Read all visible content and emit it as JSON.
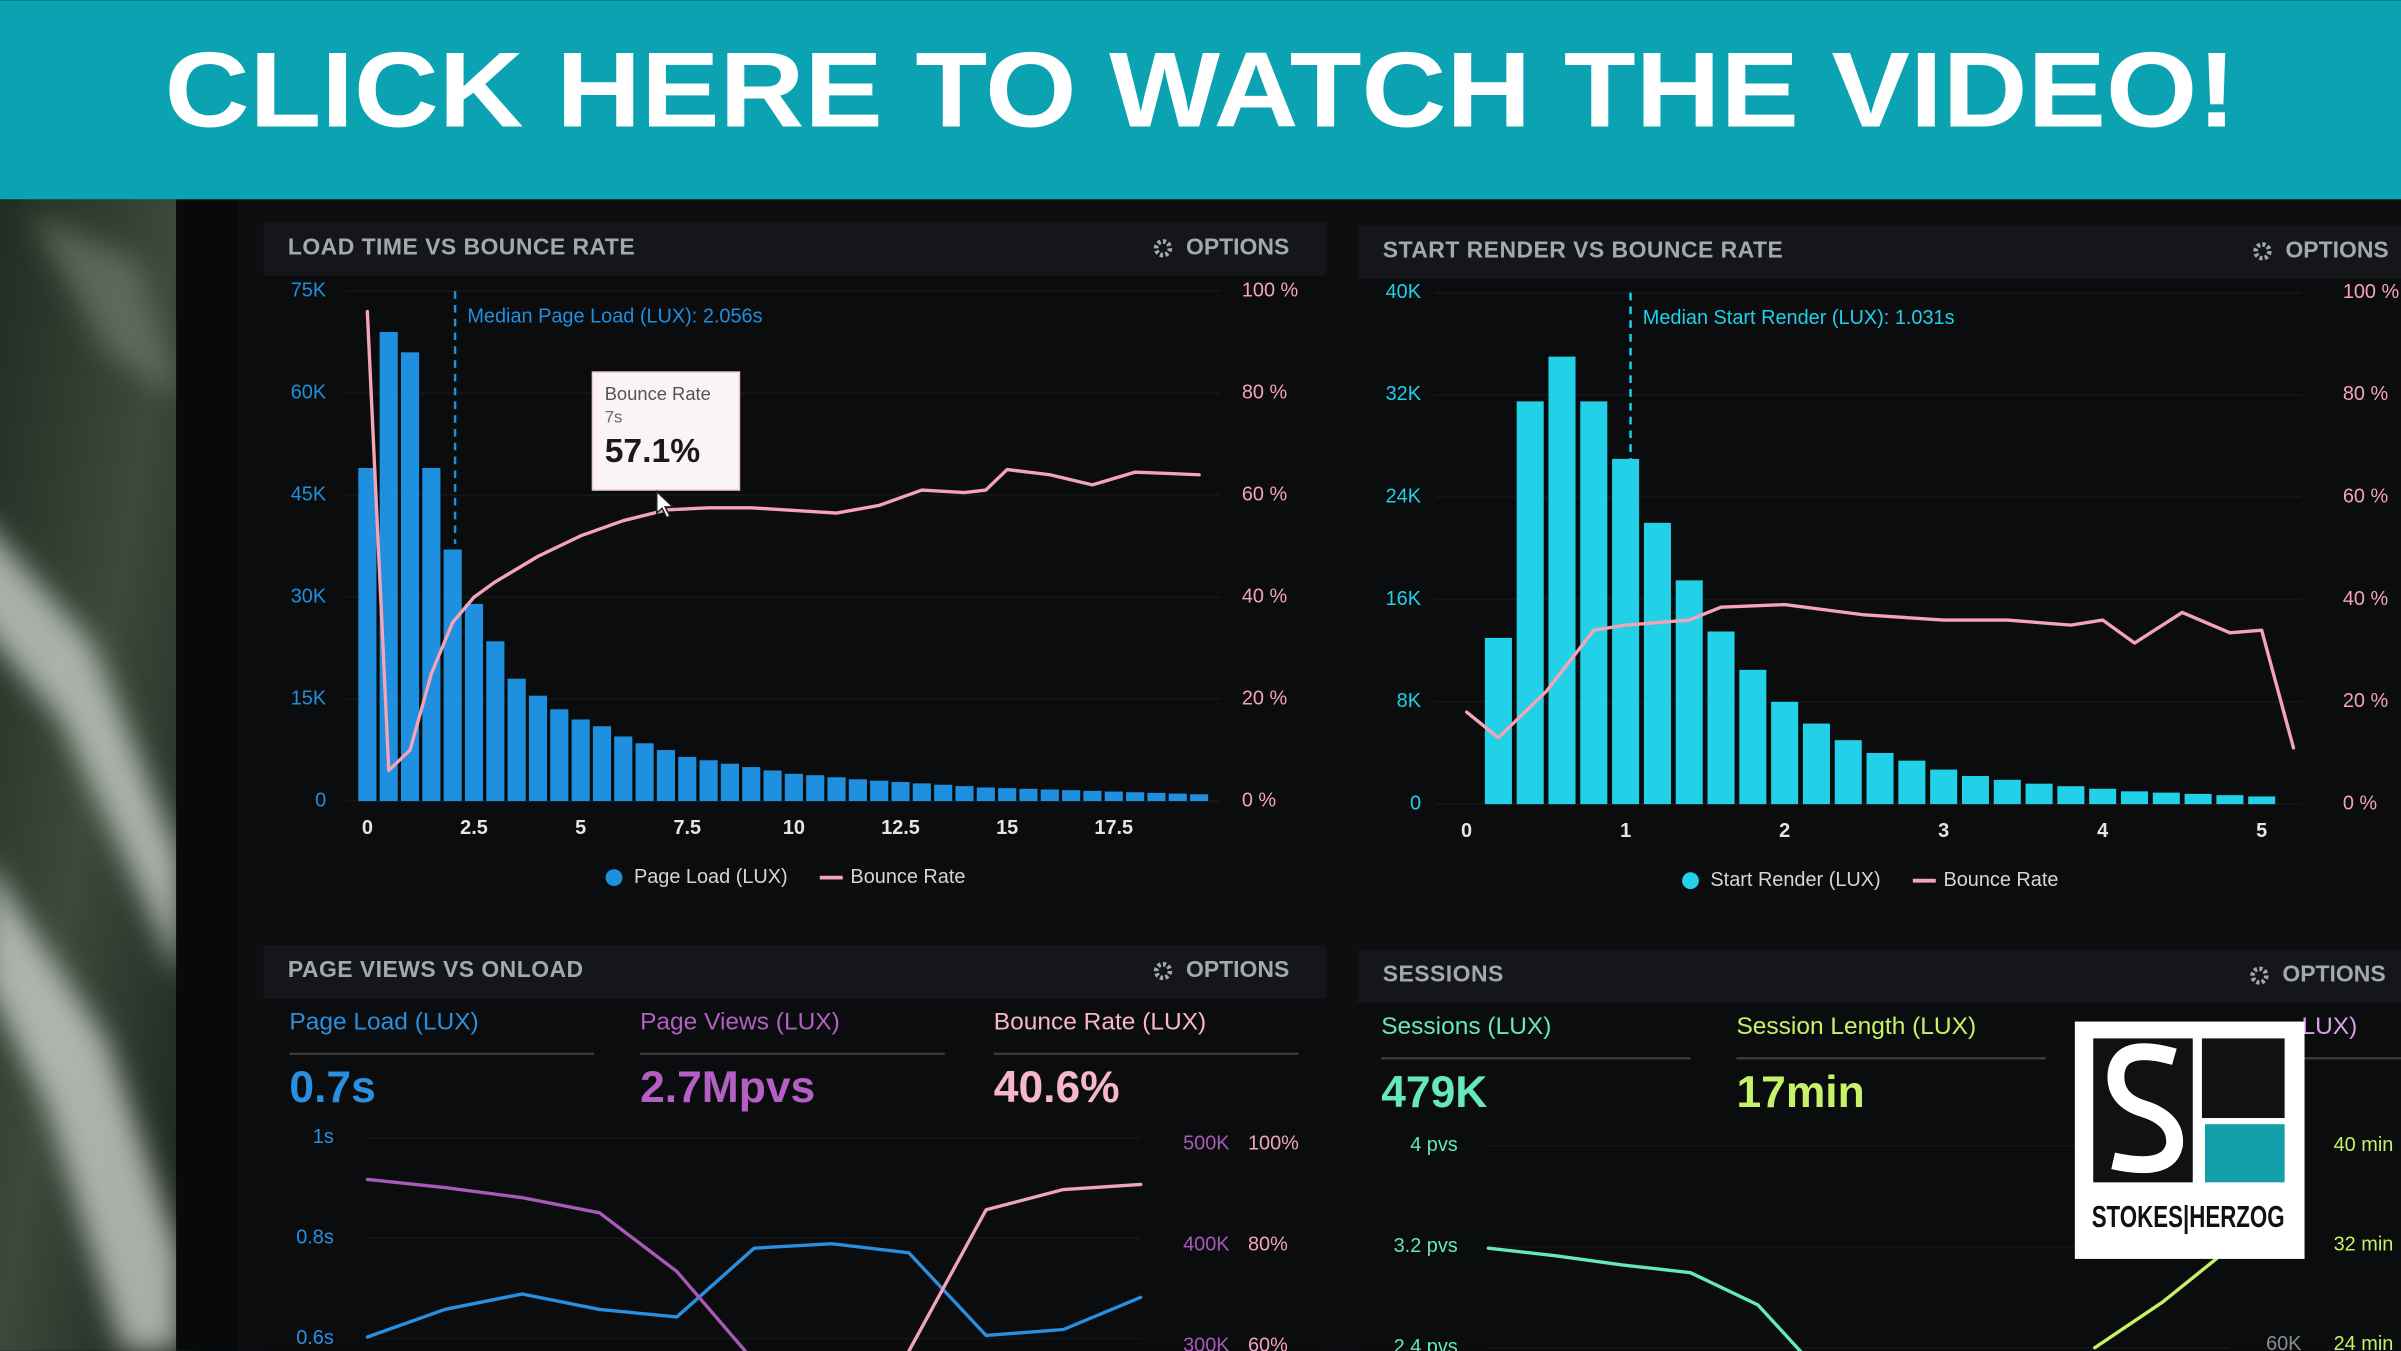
{
  "banner": {
    "text": "CLICK HERE TO WATCH THE VIDEO!"
  },
  "panels": [
    {
      "title": "LOAD TIME VS BOUNCE RATE",
      "options": "OPTIONS",
      "chart_data": {
        "type": "bar",
        "xlim": [
          -0.5,
          20
        ],
        "xticks": [
          0,
          2.5,
          5,
          7.5,
          10,
          12.5,
          15,
          17.5
        ],
        "ylim": [
          0,
          75000
        ],
        "yticks": [
          0,
          {
            "value": 15000,
            "label": "15K"
          },
          {
            "value": 30000,
            "label": "30K"
          },
          {
            "value": 45000,
            "label": "45K"
          },
          {
            "value": 60000,
            "label": "60K"
          },
          {
            "value": 75000,
            "label": "75K"
          }
        ],
        "y2lim": [
          0,
          100
        ],
        "y2ticks": [
          {
            "value": 0,
            "label": "0 %"
          },
          {
            "value": 20,
            "label": "20 %"
          },
          {
            "value": 40,
            "label": "40 %"
          },
          {
            "value": 60,
            "label": "60 %"
          },
          {
            "value": 80,
            "label": "80 %"
          },
          {
            "value": 100,
            "label": "100 %"
          }
        ],
        "series": [
          {
            "name": "Page Load (LUX)",
            "type": "bar",
            "color": "#1f8fe0",
            "x": [
              0,
              0.5,
              1,
              1.5,
              2,
              2.5,
              3,
              3.5,
              4,
              4.5,
              5,
              5.5,
              6,
              6.5,
              7,
              7.5,
              8,
              8.5,
              9,
              9.5,
              10,
              10.5,
              11,
              11.5,
              12,
              12.5,
              13,
              13.5,
              14,
              14.5,
              15,
              15.5,
              16,
              16.5,
              17,
              17.5,
              18,
              18.5,
              19,
              19.5
            ],
            "values": [
              49000,
              69000,
              66000,
              49000,
              37000,
              29000,
              23500,
              18000,
              15500,
              13500,
              12000,
              11000,
              9500,
              8500,
              7500,
              6500,
              6000,
              5500,
              5000,
              4500,
              4000,
              3800,
              3500,
              3200,
              3000,
              2800,
              2600,
              2400,
              2200,
              2000,
              1900,
              1800,
              1700,
              1600,
              1500,
              1400,
              1300,
              1200,
              1100,
              1000
            ]
          },
          {
            "name": "Bounce Rate",
            "type": "line",
            "axis": "y2",
            "color": "#f5a3b6",
            "x": [
              0,
              0.5,
              1,
              1.5,
              2,
              2.5,
              3,
              4,
              5,
              6,
              7,
              8,
              9,
              10,
              11,
              12,
              13,
              14,
              14.5,
              15,
              16,
              17,
              18,
              19.5
            ],
            "values": [
              96,
              6,
              10,
              25,
              35,
              40,
              43,
              48,
              52,
              55,
              57.1,
              57.5,
              57.5,
              57,
              56.5,
              58,
              61,
              60.5,
              61,
              65,
              64,
              62,
              64.5,
              64
            ]
          }
        ],
        "median": {
          "label": "Median Page Load (LUX): 2.056s",
          "x": 2.056
        },
        "tooltip": {
          "title": "Bounce Rate",
          "x_label": "7s",
          "value_label": "57.1%",
          "x": 7,
          "value": 57.1
        }
      }
    },
    {
      "title": "START RENDER VS BOUNCE RATE",
      "options": "OPTIONS",
      "chart_data": {
        "type": "bar",
        "xlim": [
          -0.2,
          5.25
        ],
        "xticks": [
          0,
          1,
          2,
          3,
          4,
          5
        ],
        "ylim": [
          0,
          40000
        ],
        "yticks": [
          0,
          {
            "value": 8000,
            "label": "8K"
          },
          {
            "value": 16000,
            "label": "16K"
          },
          {
            "value": 24000,
            "label": "24K"
          },
          {
            "value": 32000,
            "label": "32K"
          },
          {
            "value": 40000,
            "label": "40K"
          }
        ],
        "y2lim": [
          0,
          100
        ],
        "y2ticks": [
          {
            "value": 0,
            "label": "0 %"
          },
          {
            "value": 20,
            "label": "20 %"
          },
          {
            "value": 40,
            "label": "40 %"
          },
          {
            "value": 60,
            "label": "60 %"
          },
          {
            "value": 80,
            "label": "80 %"
          },
          {
            "value": 100,
            "label": "100 %"
          }
        ],
        "series": [
          {
            "name": "Start Render (LUX)",
            "type": "bar",
            "color": "#22d0e8",
            "x": [
              0.2,
              0.4,
              0.6,
              0.8,
              1,
              1.2,
              1.4,
              1.6,
              1.8,
              2,
              2.2,
              2.4,
              2.6,
              2.8,
              3,
              3.2,
              3.4,
              3.6,
              3.8,
              4,
              4.2,
              4.4,
              4.6,
              4.8,
              5
            ],
            "values": [
              13000,
              31500,
              35000,
              31500,
              27000,
              22000,
              17500,
              13500,
              10500,
              8000,
              6300,
              5000,
              4000,
              3400,
              2700,
              2200,
              1900,
              1600,
              1400,
              1200,
              1000,
              900,
              800,
              700,
              600
            ]
          },
          {
            "name": "Bounce Rate",
            "type": "line",
            "axis": "y2",
            "color": "#f5a3b6",
            "x": [
              0,
              0.2,
              0.5,
              0.8,
              1,
              1.4,
              1.6,
              2,
              2.5,
              3,
              3.4,
              3.8,
              4,
              4.2,
              4.5,
              4.8,
              5,
              5.2
            ],
            "values": [
              18,
              13,
              22,
              34,
              35,
              36,
              38.5,
              39,
              37,
              36,
              36,
              35,
              36,
              31.5,
              37.5,
              33.5,
              34,
              11
            ]
          }
        ],
        "median": {
          "label": "Median Start Render (LUX): 1.031s",
          "x": 1.031
        }
      }
    },
    {
      "title": "PAGE VIEWS VS ONLOAD",
      "options": "OPTIONS",
      "kpis": [
        {
          "label": "Page Load (LUX)",
          "value": "0.7s",
          "color": "#2b8fe0"
        },
        {
          "label": "Page Views (LUX)",
          "value": "2.7Mpvs",
          "color": "#b55fc4"
        },
        {
          "label": "Bounce Rate (LUX)",
          "value": "40.6%",
          "color": "#f6b8c8"
        }
      ],
      "chart_data": {
        "type": "line",
        "categories": [
          null,
          null,
          null,
          null,
          null,
          null,
          null,
          null,
          null,
          null,
          null
        ],
        "ylim": [
          0.6,
          1
        ],
        "yticks": [
          {
            "value": 1,
            "label": "1s"
          },
          {
            "value": 0.8,
            "label": "0.8s"
          },
          {
            "value": 0.6,
            "label": "0.6s"
          }
        ],
        "y2lim": [
          300000,
          500000
        ],
        "y2ticks": [
          {
            "value": 500000,
            "label": "500K"
          },
          {
            "value": 400000,
            "label": "400K"
          },
          {
            "value": 300000,
            "label": "300K"
          }
        ],
        "y3lim": [
          60,
          100
        ],
        "y3ticks": [
          {
            "value": 100,
            "label": "100%"
          },
          {
            "value": 80,
            "label": "80%"
          },
          {
            "value": 60,
            "label": "60%"
          }
        ],
        "series": [
          {
            "color": "#2b8fe0",
            "values": [
              0.603,
              0.658,
              0.689,
              0.658,
              0.643,
              0.78,
              0.789,
              0.771,
              0.606,
              0.618,
              0.682
            ]
          },
          {
            "color": "#a85ab8",
            "axis": "y2",
            "values": [
              465000,
              457000,
              447000,
              432000,
              374000,
              285000,
              null,
              null,
              null,
              null,
              null
            ]
          },
          {
            "color": "#f0a2c0",
            "axis": "y3",
            "values": [
              null,
              null,
              null,
              null,
              null,
              null,
              null,
              59,
              87,
              91,
              92
            ]
          }
        ]
      }
    },
    {
      "title": "SESSIONS",
      "options": "OPTIONS",
      "kpis": [
        {
          "label": "Sessions (LUX)",
          "value": "479K",
          "color": "#66e8b8"
        },
        {
          "label": "Session Length (LUX)",
          "value": "17min",
          "color": "#c6f26a"
        },
        {
          "label": "LUX)",
          "color": "#d6a0e8"
        }
      ],
      "chart_data": {
        "type": "line",
        "categories": [
          null,
          null,
          null,
          null,
          null,
          null,
          null,
          null,
          null,
          null,
          null,
          null
        ],
        "ylim": [
          2.4,
          4
        ],
        "yticks": [
          {
            "value": 4,
            "label": "4 pvs"
          },
          {
            "value": 3.2,
            "label": "3.2 pvs"
          },
          {
            "value": 2.4,
            "label": "2.4 pvs"
          }
        ],
        "y2lim": [
          24,
          40
        ],
        "y2ticks": [
          {
            "value": 40,
            "label": "40 min"
          },
          {
            "value": 32,
            "label": "32 min"
          },
          {
            "value": 24,
            "label": "24 min"
          }
        ],
        "y3lim": [
          60000,
          100000
        ],
        "y3ticks": [
          {
            "value": 60000,
            "label": "60K"
          }
        ],
        "series": [
          {
            "color": "#66e8b8",
            "values": [
              3.188,
              3.127,
              3.055,
              2.994,
              2.739,
              2.158,
              null,
              null,
              null,
              null,
              null,
              null
            ]
          },
          {
            "color": "#c6f26a",
            "axis": "y2",
            "values": [
              null,
              null,
              null,
              null,
              null,
              null,
              null,
              null,
              null,
              23.75,
              27.4,
              31.75
            ]
          }
        ]
      }
    }
  ],
  "logo": {
    "text": "STOKES|HERZOG"
  }
}
